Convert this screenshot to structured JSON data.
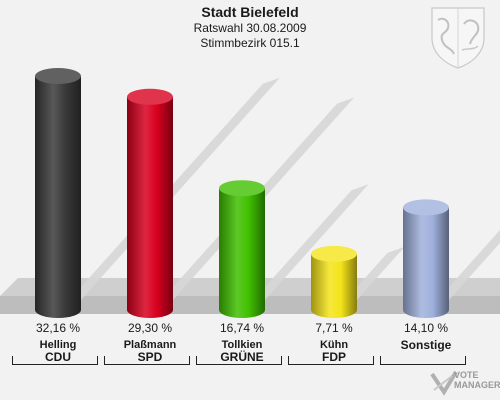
{
  "header": {
    "title": "Stadt Bielefeld",
    "subtitle": "Ratswahl 30.08.2009",
    "district": "Stimmbezirk 015.1"
  },
  "logo": {
    "line1": "VOTE",
    "line2": "MANAGER"
  },
  "colors": {
    "CDU": "#3a3a3a",
    "SPD": "#d8001f",
    "GRUENE": "#3fc000",
    "FDP": "#f4e41a",
    "Sonstige": "#9fb0dc"
  },
  "chart_data": {
    "type": "bar",
    "categories": [
      "CDU",
      "SPD",
      "GRÜNE",
      "FDP",
      "Sonstige"
    ],
    "candidates": [
      "Helling",
      "Plaßmann",
      "Tollkien",
      "Kühn",
      ""
    ],
    "values": [
      32.16,
      29.3,
      16.74,
      7.71,
      14.1
    ],
    "value_labels": [
      "32,16 %",
      "29,30 %",
      "16,74 %",
      "7,71 %",
      "14,10 %"
    ],
    "ylim": [
      0,
      32.16
    ],
    "grid": false,
    "legend": "none"
  }
}
